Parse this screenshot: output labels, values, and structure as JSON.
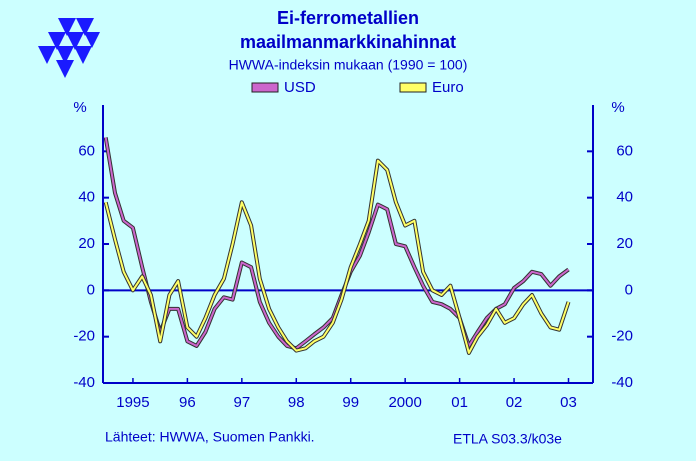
{
  "chart_data": {
    "type": "line",
    "title": [
      "Ei-ferrometallien",
      "maailmanmarkkinahinnat"
    ],
    "subtitle": "HWWA-indeksin  mukaan  (1990 = 100)",
    "y_unit": "%",
    "y2_unit": "%",
    "source": "Lähteet:   HWWA, Suomen Pankki.",
    "code": "ETLA S03.3/k03e",
    "x": [
      1995,
      1995.17,
      1995.33,
      1995.5,
      1995.67,
      1995.83,
      1996,
      1996.17,
      1996.33,
      1996.5,
      1996.67,
      1996.83,
      1997,
      1997.17,
      1997.33,
      1997.5,
      1997.67,
      1997.83,
      1998,
      1998.17,
      1998.33,
      1998.5,
      1998.67,
      1998.83,
      1999,
      1999.17,
      1999.33,
      1999.5,
      1999.67,
      1999.83,
      2000,
      2000.17,
      2000.33,
      2000.5,
      2000.67,
      2000.83,
      2001,
      2001.17,
      2001.33,
      2001.5,
      2001.67,
      2001.83,
      2002,
      2002.17,
      2002.33,
      2002.5,
      2002.67,
      2002.83,
      2003,
      2003.17,
      2003.33,
      2003.5
    ],
    "series": [
      {
        "name": "USD",
        "color": "#cc66cc",
        "values": [
          66,
          42,
          30,
          27,
          10,
          -5,
          -18,
          -8,
          -8,
          -22,
          -24,
          -18,
          -8,
          -3,
          -4,
          12,
          10,
          -5,
          -14,
          -20,
          -24,
          -25,
          -22,
          -19,
          -16,
          -12,
          -2,
          8,
          15,
          25,
          37,
          35,
          20,
          19,
          10,
          2,
          -5,
          -6,
          -8,
          -12,
          -24,
          -18,
          -12,
          -8,
          -6,
          1,
          4,
          8,
          7,
          2,
          6,
          9
        ]
      },
      {
        "name": "Euro",
        "color": "#ffff66",
        "values": [
          38,
          22,
          8,
          0,
          6,
          -2,
          -22,
          -2,
          4,
          -16,
          -20,
          -12,
          -2,
          5,
          20,
          38,
          28,
          5,
          -8,
          -16,
          -22,
          -26,
          -25,
          -22,
          -20,
          -14,
          -4,
          10,
          20,
          30,
          56,
          52,
          38,
          28,
          30,
          8,
          0,
          -2,
          2,
          -12,
          -27,
          -20,
          -15,
          -8,
          -14,
          -12,
          -6,
          -2,
          -10,
          -16,
          -17,
          -5
        ]
      }
    ],
    "xlim": [
      1994.95,
      2003.95
    ],
    "xticks": [
      {
        "value": 1995.5,
        "label": "1995"
      },
      {
        "value": 1996.5,
        "label": "96"
      },
      {
        "value": 1997.5,
        "label": "97"
      },
      {
        "value": 1998.5,
        "label": "98"
      },
      {
        "value": 1999.5,
        "label": "99"
      },
      {
        "value": 2000.5,
        "label": "2000"
      },
      {
        "value": 2001.5,
        "label": "01"
      },
      {
        "value": 2002.5,
        "label": "02"
      },
      {
        "value": 2003.5,
        "label": "03"
      }
    ],
    "ylim": [
      -40,
      80
    ],
    "yticks": [
      -40,
      -20,
      0,
      20,
      40,
      60
    ],
    "y2lim": [
      -40,
      80
    ],
    "y2ticks": [
      -40,
      -20,
      0,
      20,
      40,
      60
    ]
  }
}
